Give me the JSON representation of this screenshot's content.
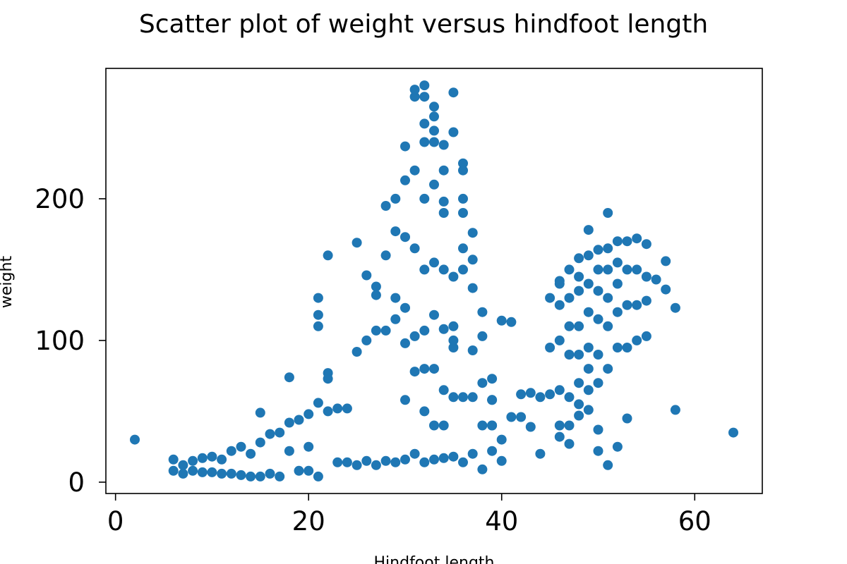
{
  "chart_data": {
    "type": "scatter",
    "title": "Scatter plot of weight versus hindfoot length",
    "xlabel": "Hindfoot length",
    "ylabel": "weight",
    "xlim": [
      -1,
      67
    ],
    "ylim": [
      -8,
      292
    ],
    "xticks": [
      0,
      20,
      40,
      60
    ],
    "yticks": [
      0,
      100,
      200
    ],
    "grid": false,
    "legend": "none",
    "colors": {
      "points": "#1f77b4",
      "axes": "#000000",
      "background": "#ffffff"
    },
    "series": [
      {
        "x": [
          2,
          6,
          6,
          7,
          7,
          8,
          8,
          9,
          9,
          10,
          10,
          11,
          11,
          12,
          12,
          13,
          13,
          14,
          14,
          15,
          15,
          15,
          16,
          16,
          17,
          17,
          18,
          18,
          18,
          19,
          19,
          20,
          20,
          20,
          21,
          21,
          21,
          21,
          21,
          22,
          22,
          22,
          22,
          23,
          23,
          24,
          24,
          25,
          25,
          25,
          26,
          26,
          26,
          27,
          27,
          27,
          27,
          28,
          28,
          28,
          28,
          29,
          29,
          29,
          29,
          29,
          30,
          30,
          30,
          30,
          30,
          30,
          30,
          31,
          31,
          31,
          31,
          31,
          31,
          31,
          32,
          32,
          32,
          32,
          32,
          32,
          32,
          32,
          32,
          32,
          33,
          33,
          33,
          33,
          33,
          33,
          33,
          33,
          33,
          33,
          34,
          34,
          34,
          34,
          34,
          34,
          34,
          34,
          34,
          35,
          35,
          35,
          35,
          35,
          35,
          35,
          35,
          36,
          36,
          36,
          36,
          36,
          36,
          36,
          36,
          37,
          37,
          37,
          37,
          37,
          37,
          38,
          38,
          38,
          38,
          38,
          39,
          39,
          39,
          39,
          39,
          39,
          40,
          40,
          40,
          41,
          41,
          42,
          42,
          43,
          43,
          44,
          44,
          45,
          45,
          45,
          46,
          46,
          46,
          46,
          46,
          46,
          46,
          47,
          47,
          47,
          47,
          47,
          47,
          47,
          48,
          48,
          48,
          48,
          48,
          48,
          48,
          48,
          49,
          49,
          49,
          49,
          49,
          49,
          49,
          49,
          50,
          50,
          50,
          50,
          50,
          50,
          50,
          50,
          51,
          51,
          51,
          51,
          51,
          51,
          51,
          52,
          52,
          52,
          52,
          52,
          52,
          53,
          53,
          53,
          53,
          53,
          54,
          54,
          54,
          54,
          55,
          55,
          55,
          55,
          56,
          57,
          57,
          58,
          58,
          64
        ],
        "y": [
          30,
          16,
          8,
          12,
          6,
          15,
          8,
          17,
          7,
          18,
          7,
          16,
          6,
          22,
          6,
          25,
          5,
          20,
          4,
          49,
          28,
          4,
          34,
          6,
          35,
          4,
          42,
          22,
          74,
          44,
          8,
          48,
          25,
          8,
          56,
          130,
          118,
          110,
          4,
          50,
          160,
          77,
          73,
          52,
          14,
          52,
          14,
          92,
          169,
          12,
          146,
          100,
          15,
          138,
          107,
          132,
          12,
          195,
          160,
          107,
          15,
          200,
          177,
          130,
          115,
          14,
          213,
          173,
          123,
          98,
          58,
          16,
          237,
          220,
          165,
          103,
          78,
          20,
          272,
          277,
          253,
          240,
          200,
          150,
          107,
          80,
          50,
          14,
          280,
          272,
          258,
          240,
          210,
          155,
          118,
          80,
          40,
          16,
          265,
          248,
          220,
          190,
          150,
          108,
          65,
          40,
          17,
          238,
          198,
          145,
          110,
          100,
          95,
          60,
          18,
          275,
          247,
          225,
          200,
          165,
          150,
          60,
          14,
          220,
          190,
          157,
          137,
          60,
          20,
          176,
          93,
          70,
          40,
          9,
          120,
          103,
          73,
          58,
          40,
          22,
          58,
          40,
          30,
          114,
          15,
          113,
          46,
          62,
          46,
          63,
          39,
          60,
          20,
          130,
          95,
          62,
          142,
          140,
          125,
          100,
          65,
          40,
          32,
          150,
          130,
          110,
          90,
          60,
          40,
          27,
          158,
          145,
          135,
          110,
          90,
          70,
          55,
          47,
          178,
          160,
          140,
          120,
          95,
          80,
          65,
          51,
          164,
          150,
          135,
          115,
          90,
          70,
          37,
          22,
          190,
          165,
          150,
          130,
          110,
          80,
          12,
          170,
          155,
          140,
          120,
          95,
          25,
          170,
          150,
          125,
          95,
          45,
          172,
          150,
          125,
          100,
          168,
          145,
          128,
          103,
          143,
          156,
          136,
          123,
          51,
          35
        ]
      }
    ]
  }
}
